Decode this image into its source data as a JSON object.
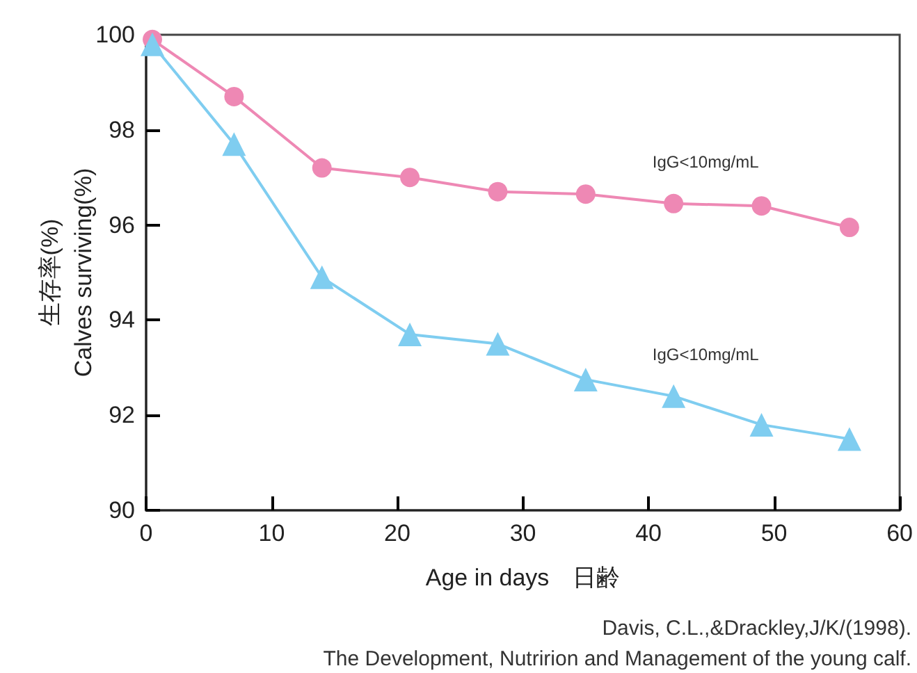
{
  "chart_data": {
    "type": "line",
    "xlabel": "Age in days　日齢",
    "ylabel": "生存率(%)\nCalves surviving(%)",
    "x": [
      0.5,
      7,
      14,
      21,
      28,
      35,
      42,
      49,
      56
    ],
    "series": [
      {
        "name": "IgG<10mg/mL",
        "color": "#ee88b4",
        "marker": "circle",
        "values": [
          99.9,
          98.7,
          97.2,
          97.0,
          96.7,
          96.65,
          96.45,
          96.4,
          95.95
        ]
      },
      {
        "name": "IgG<10mg/mL",
        "color": "#7fcdf0",
        "marker": "triangle",
        "values": [
          99.8,
          97.7,
          94.9,
          93.7,
          93.5,
          92.75,
          92.4,
          91.8,
          91.5
        ]
      }
    ],
    "xlim": [
      0,
      60
    ],
    "xticks": [
      0,
      10,
      20,
      30,
      40,
      50,
      60
    ],
    "ylim": [
      90,
      100
    ],
    "yticks": [
      90,
      92,
      94,
      96,
      98,
      100
    ],
    "grid": false,
    "annotations": [
      "Davis, C.L.,&Drackley,J/K/(1998).",
      "The Development, Nutririon and Management of the young calf."
    ]
  }
}
